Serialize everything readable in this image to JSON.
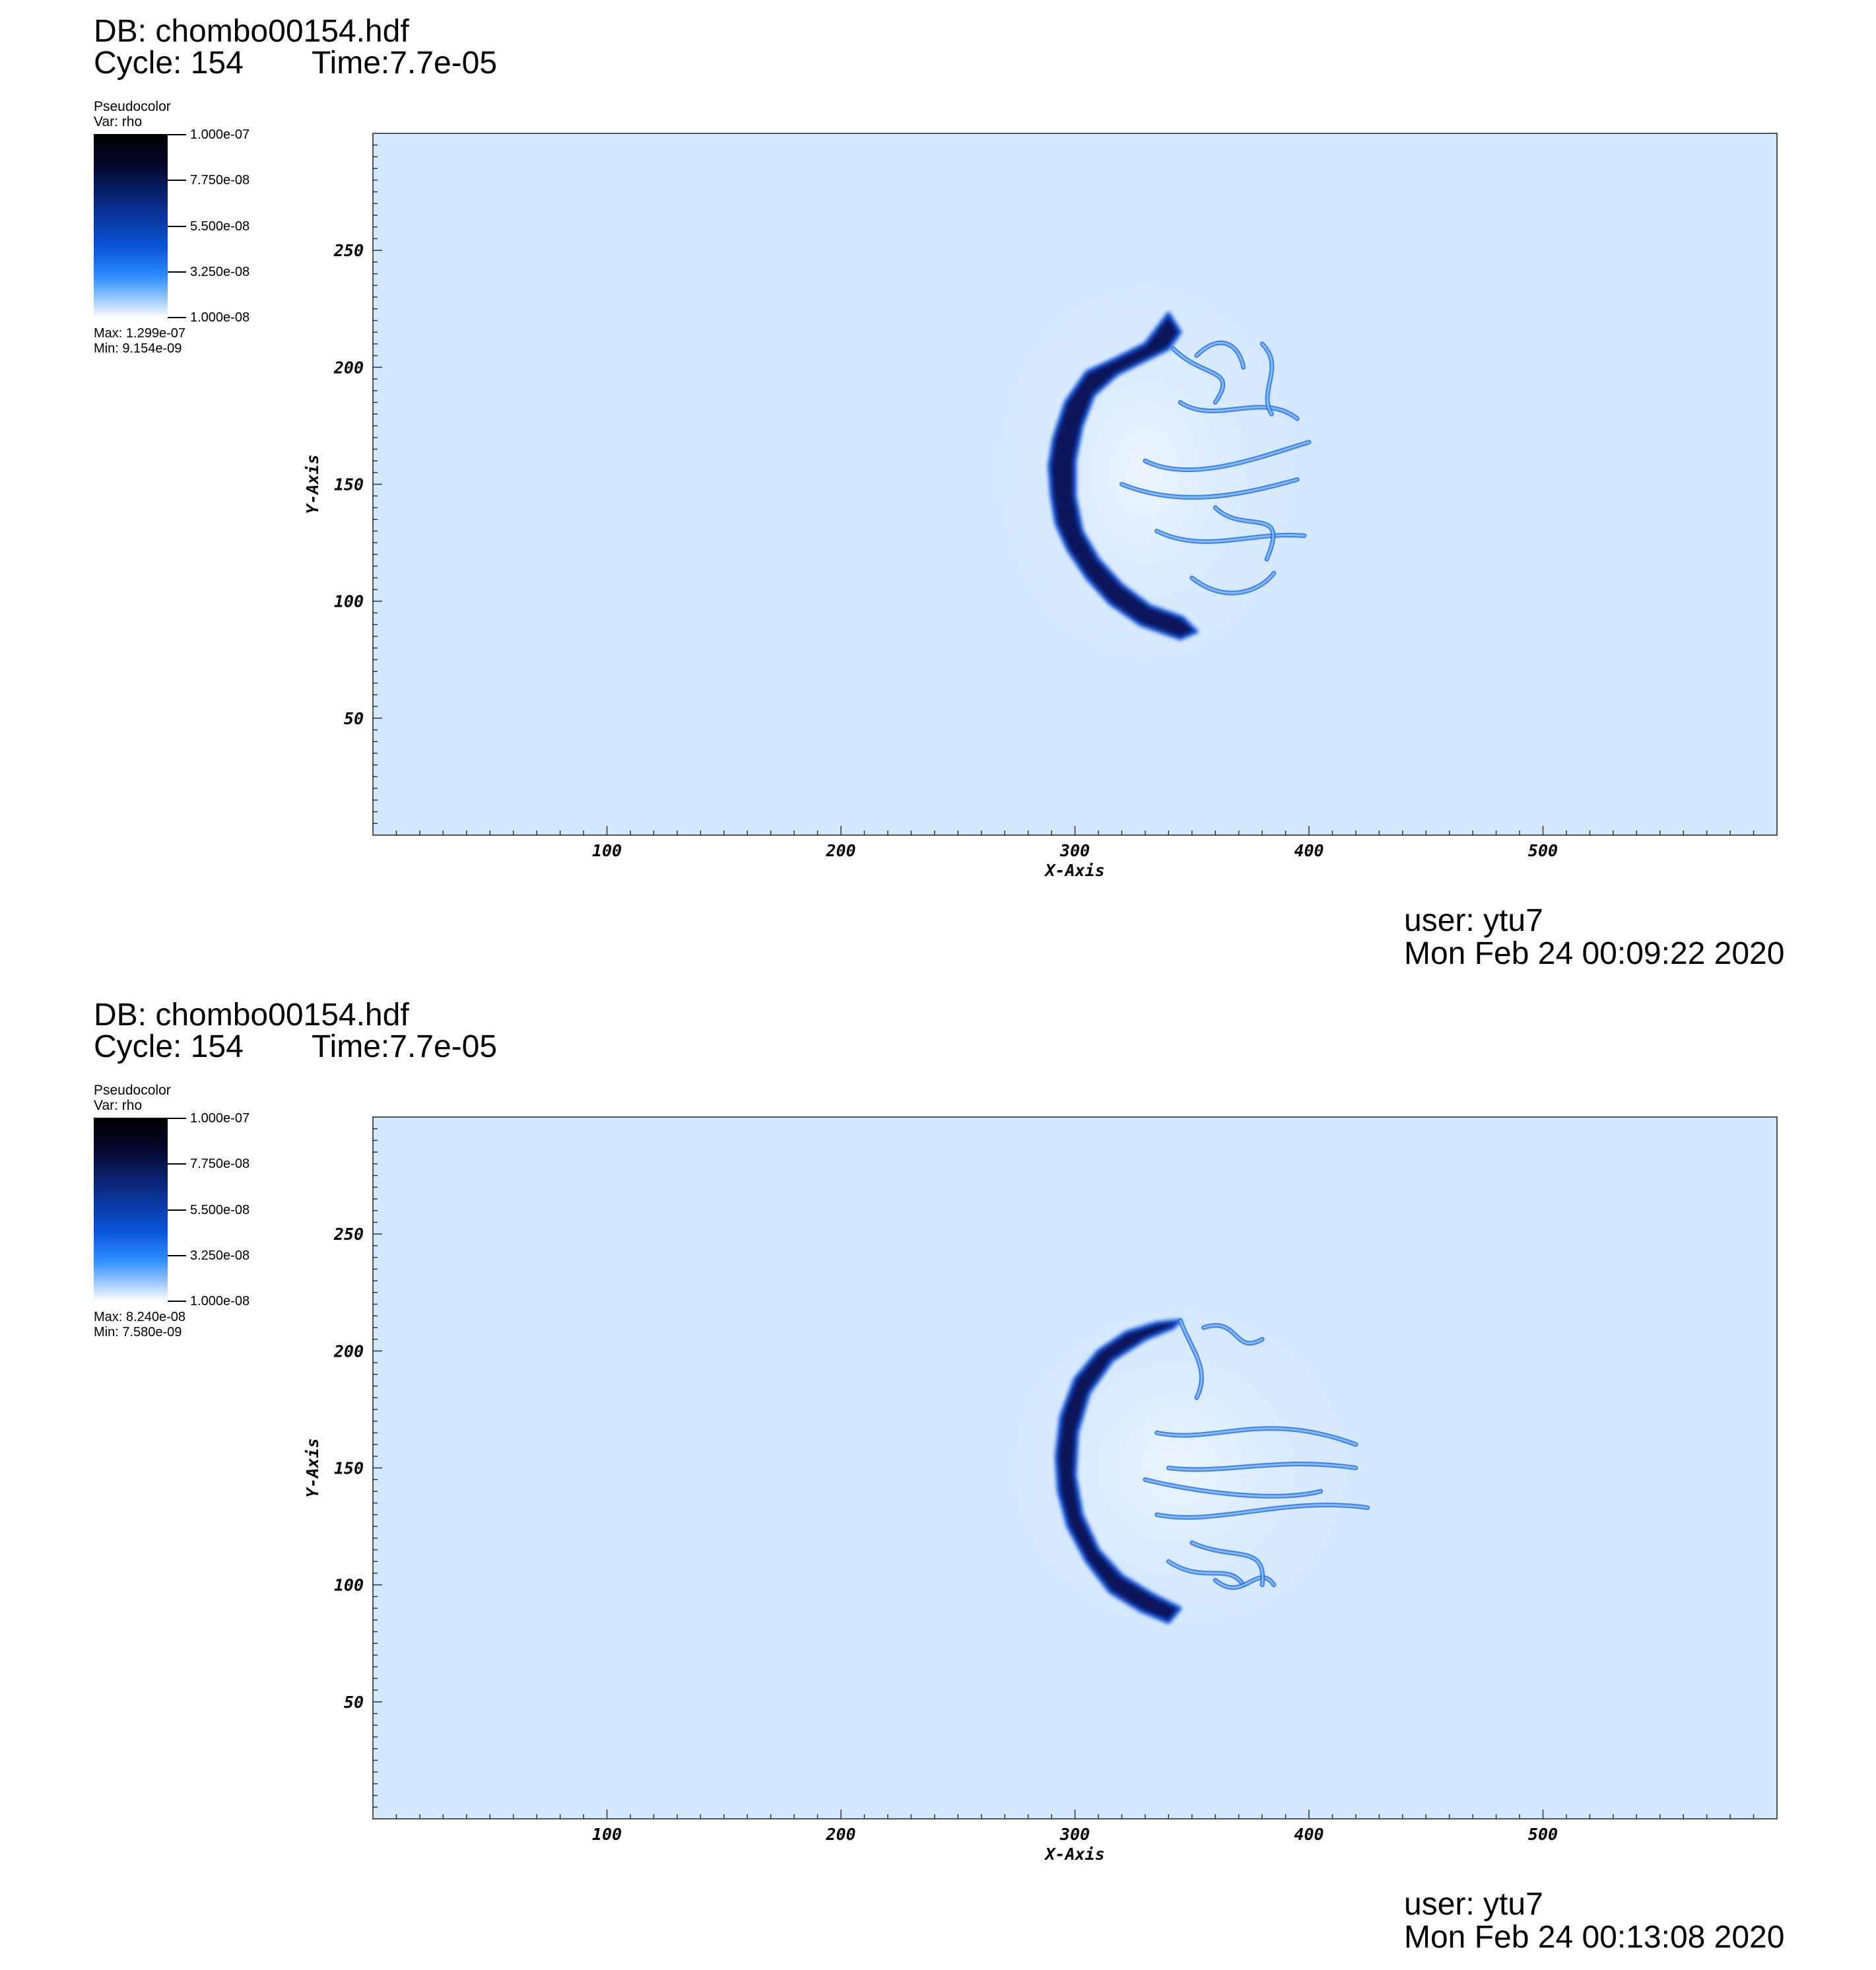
{
  "panels": [
    {
      "db_title": "DB: chombo00154.hdf",
      "cycle_label": "Cycle: 154",
      "time_label": "Time:7.7e-05",
      "legend": {
        "title": "Pseudocolor",
        "var": "Var: rho",
        "tick_labels": [
          "1.000e-07",
          "7.750e-08",
          "5.500e-08",
          "3.250e-08",
          "1.000e-08"
        ],
        "max_label": "Max:  1.299e-07",
        "min_label": "Min:  9.154e-09"
      },
      "user": "user: ytu7",
      "date": "Mon Feb 24 00:09:22 2020"
    },
    {
      "db_title": "DB: chombo00154.hdf",
      "cycle_label": "Cycle: 154",
      "time_label": "Time:7.7e-05",
      "legend": {
        "title": "Pseudocolor",
        "var": "Var: rho",
        "tick_labels": [
          "1.000e-07",
          "7.750e-08",
          "5.500e-08",
          "3.250e-08",
          "1.000e-08"
        ],
        "max_label": "Max:  8.240e-08",
        "min_label": "Min:  7.580e-09"
      },
      "user": "user: ytu7",
      "date": "Mon Feb 24 00:13:08 2020"
    }
  ],
  "chart_data": [
    {
      "type": "heatmap",
      "variable": "rho",
      "xlabel": "X-Axis",
      "ylabel": "Y-Axis",
      "xlim": [
        0,
        600
      ],
      "ylim": [
        0,
        300
      ],
      "x_ticks": [
        100,
        200,
        300,
        400,
        500
      ],
      "y_ticks": [
        50,
        100,
        150,
        200,
        250
      ],
      "color_range": [
        1e-08,
        1e-07
      ],
      "data_max": 1.299e-07,
      "data_min": 9.154e-09,
      "background_color": "#d4e8fd",
      "feature": {
        "shape": "crescent front with turbulent trailing filaments",
        "front_x": 290,
        "y_range": [
          83,
          222
        ],
        "filaments_x_max": 405
      }
    },
    {
      "type": "heatmap",
      "variable": "rho",
      "xlabel": "X-Axis",
      "ylabel": "Y-Axis",
      "xlim": [
        0,
        600
      ],
      "ylim": [
        0,
        300
      ],
      "x_ticks": [
        100,
        200,
        300,
        400,
        500
      ],
      "y_ticks": [
        50,
        100,
        150,
        200,
        250
      ],
      "color_range": [
        1e-08,
        1e-07
      ],
      "data_max": 8.24e-08,
      "data_min": 7.58e-09,
      "background_color": "#d4e8fd",
      "feature": {
        "shape": "crescent front with turbulent trailing filaments",
        "front_x": 293,
        "y_range": [
          84,
          215
        ],
        "filaments_x_max": 420
      }
    }
  ]
}
